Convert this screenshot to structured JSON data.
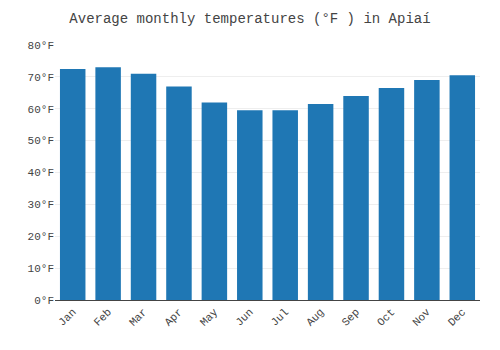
{
  "chart_data": {
    "type": "bar",
    "title": "Average monthly temperatures (°F ) in Apiaí",
    "categories": [
      "Jan",
      "Feb",
      "Mar",
      "Apr",
      "May",
      "Jun",
      "Jul",
      "Aug",
      "Sep",
      "Oct",
      "Nov",
      "Dec"
    ],
    "values": [
      72.5,
      73.0,
      71.0,
      67.0,
      62.0,
      59.5,
      59.5,
      61.5,
      64.0,
      66.5,
      69.0,
      70.5
    ],
    "ylim": [
      0,
      80
    ],
    "yticks": [
      {
        "value": 0,
        "label": "0°F"
      },
      {
        "value": 10,
        "label": "10°F"
      },
      {
        "value": 20,
        "label": "20°F"
      },
      {
        "value": 30,
        "label": "30°F"
      },
      {
        "value": 40,
        "label": "40°F"
      },
      {
        "value": 50,
        "label": "50°F"
      },
      {
        "value": 60,
        "label": "60°F"
      },
      {
        "value": 70,
        "label": "70°F"
      },
      {
        "value": 80,
        "label": "80°F"
      }
    ],
    "grid": true
  }
}
